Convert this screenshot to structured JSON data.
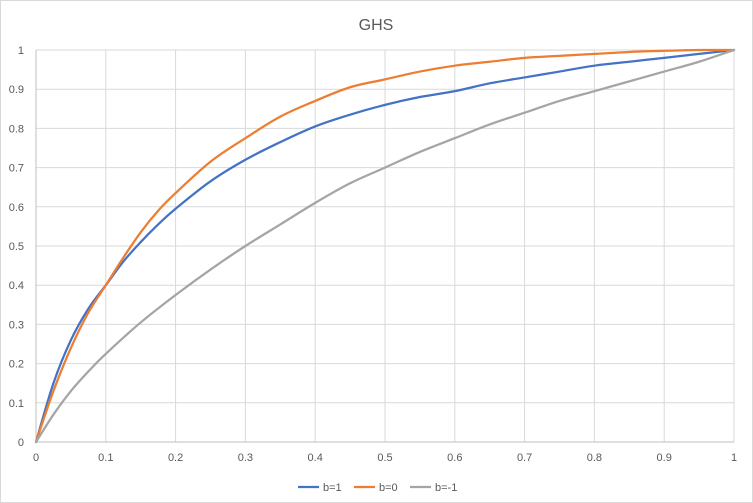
{
  "chart_data": {
    "type": "line",
    "title": "GHS",
    "xlim": [
      0,
      1
    ],
    "ylim": [
      0,
      1
    ],
    "x_ticks": [
      "0",
      "0.1",
      "0.2",
      "0.3",
      "0.4",
      "0.5",
      "0.6",
      "0.7",
      "0.8",
      "0.9",
      "1"
    ],
    "y_ticks": [
      "0",
      "0.1",
      "0.2",
      "0.3",
      "0.4",
      "0.5",
      "0.6",
      "0.7",
      "0.8",
      "0.9",
      "1"
    ],
    "grid": true,
    "legend_position": "bottom",
    "series": [
      {
        "name": "b=1",
        "color": "#4472C4",
        "x": [
          0,
          0.025,
          0.05,
          0.075,
          0.1,
          0.125,
          0.15,
          0.175,
          0.2,
          0.25,
          0.3,
          0.35,
          0.4,
          0.45,
          0.5,
          0.55,
          0.6,
          0.65,
          0.7,
          0.75,
          0.8,
          0.85,
          0.9,
          0.95,
          1
        ],
        "y": [
          0,
          0.15,
          0.26,
          0.34,
          0.4,
          0.46,
          0.51,
          0.555,
          0.595,
          0.665,
          0.72,
          0.765,
          0.805,
          0.835,
          0.86,
          0.88,
          0.895,
          0.915,
          0.93,
          0.945,
          0.96,
          0.97,
          0.98,
          0.99,
          1
        ]
      },
      {
        "name": "b=0",
        "color": "#ED7D31",
        "x": [
          0,
          0.025,
          0.05,
          0.075,
          0.1,
          0.125,
          0.15,
          0.175,
          0.2,
          0.25,
          0.3,
          0.35,
          0.4,
          0.45,
          0.5,
          0.55,
          0.6,
          0.65,
          0.7,
          0.75,
          0.8,
          0.85,
          0.9,
          0.95,
          1
        ],
        "y": [
          0,
          0.13,
          0.24,
          0.33,
          0.4,
          0.47,
          0.535,
          0.59,
          0.635,
          0.715,
          0.775,
          0.83,
          0.87,
          0.905,
          0.925,
          0.945,
          0.96,
          0.97,
          0.98,
          0.985,
          0.99,
          0.995,
          0.998,
          1,
          1
        ]
      },
      {
        "name": "b=-1",
        "color": "#A5A5A5",
        "x": [
          0,
          0.025,
          0.05,
          0.075,
          0.1,
          0.15,
          0.2,
          0.25,
          0.3,
          0.35,
          0.4,
          0.45,
          0.5,
          0.55,
          0.6,
          0.65,
          0.7,
          0.75,
          0.8,
          0.85,
          0.9,
          0.95,
          1
        ],
        "y": [
          0,
          0.07,
          0.13,
          0.18,
          0.225,
          0.305,
          0.375,
          0.44,
          0.5,
          0.555,
          0.61,
          0.66,
          0.7,
          0.74,
          0.775,
          0.81,
          0.84,
          0.87,
          0.895,
          0.92,
          0.945,
          0.97,
          1
        ]
      }
    ]
  }
}
